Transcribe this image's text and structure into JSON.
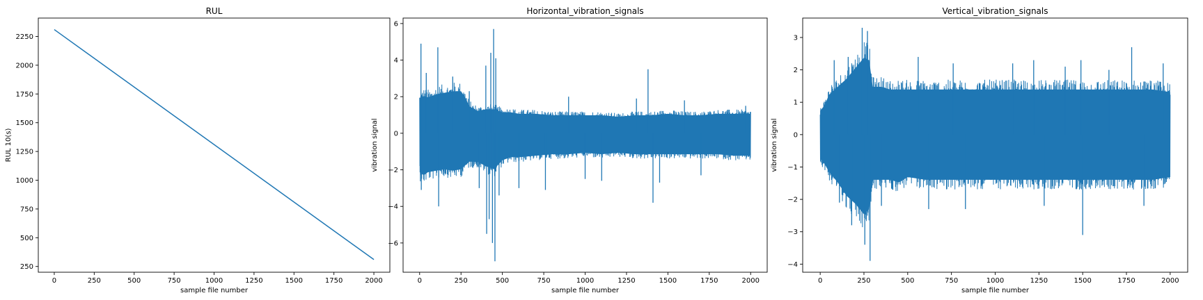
{
  "chart_data": [
    {
      "type": "line",
      "title": "RUL",
      "xlabel": "sample file number",
      "ylabel": "RUL 10(s)",
      "xlim": [
        -100,
        2100
      ],
      "ylim": [
        200,
        2410
      ],
      "xticks": [
        0,
        250,
        500,
        750,
        1000,
        1250,
        1500,
        1750,
        2000
      ],
      "yticks": [
        250,
        500,
        750,
        1000,
        1250,
        1500,
        1750,
        2000,
        2250
      ],
      "grid": false,
      "series": [
        {
          "color": "#1f77b4",
          "x": [
            0,
            2000
          ],
          "y": [
            2310,
            310
          ]
        }
      ]
    },
    {
      "type": "line",
      "title": "Horizontal_vibration_signals",
      "xlabel": "sample file number",
      "ylabel": "vibration signal",
      "xlim": [
        -100,
        2100
      ],
      "ylim": [
        -7.6,
        6.3
      ],
      "xticks": [
        0,
        250,
        500,
        750,
        1000,
        1250,
        1500,
        1750,
        2000
      ],
      "yticks": [
        -6,
        -4,
        -2,
        0,
        2,
        4,
        6
      ],
      "grid": false,
      "series": [
        {
          "color": "#1f77b4",
          "envelope_x": [
            0,
            25,
            50,
            100,
            150,
            200,
            250,
            280,
            300,
            350,
            400,
            450,
            500,
            550,
            600,
            700,
            800,
            900,
            1000,
            1100,
            1200,
            1300,
            1400,
            1500,
            1600,
            1700,
            1800,
            1900,
            2000
          ],
          "envelope_upper": [
            2.3,
            2.5,
            2.4,
            2.6,
            2.7,
            2.8,
            2.8,
            2.3,
            1.8,
            1.5,
            1.6,
            1.6,
            1.4,
            1.4,
            1.3,
            1.3,
            1.2,
            1.2,
            1.2,
            1.2,
            1.1,
            1.2,
            1.2,
            1.3,
            1.2,
            1.2,
            1.3,
            1.3,
            1.3
          ],
          "envelope_lower": [
            -2.6,
            -2.8,
            -2.6,
            -2.5,
            -2.4,
            -2.5,
            -2.4,
            -2.1,
            -1.9,
            -1.9,
            -2.2,
            -2.4,
            -1.8,
            -1.6,
            -1.6,
            -1.5,
            -1.4,
            -1.4,
            -1.3,
            -1.4,
            -1.3,
            -1.4,
            -1.4,
            -1.4,
            -1.4,
            -1.4,
            -1.4,
            -1.5,
            -1.5
          ],
          "spikes": [
            {
              "x": 8,
              "y": 4.9
            },
            {
              "x": 10,
              "y": -3.1
            },
            {
              "x": 40,
              "y": 3.3
            },
            {
              "x": 110,
              "y": 4.7
            },
            {
              "x": 115,
              "y": -4.0
            },
            {
              "x": 200,
              "y": 3.1
            },
            {
              "x": 300,
              "y": 2.3
            },
            {
              "x": 360,
              "y": -3.0
            },
            {
              "x": 400,
              "y": 3.7
            },
            {
              "x": 405,
              "y": -5.5
            },
            {
              "x": 420,
              "y": -4.7
            },
            {
              "x": 430,
              "y": 4.4
            },
            {
              "x": 440,
              "y": -6.0
            },
            {
              "x": 447,
              "y": 5.7
            },
            {
              "x": 455,
              "y": -7.0
            },
            {
              "x": 460,
              "y": 4.1
            },
            {
              "x": 480,
              "y": -3.4
            },
            {
              "x": 600,
              "y": -3.0
            },
            {
              "x": 760,
              "y": -3.1
            },
            {
              "x": 900,
              "y": 2.0
            },
            {
              "x": 1000,
              "y": -2.5
            },
            {
              "x": 1100,
              "y": -2.6
            },
            {
              "x": 1310,
              "y": 1.9
            },
            {
              "x": 1380,
              "y": 3.5
            },
            {
              "x": 1410,
              "y": -3.8
            },
            {
              "x": 1450,
              "y": -2.7
            },
            {
              "x": 1600,
              "y": 1.8
            },
            {
              "x": 1700,
              "y": -2.3
            },
            {
              "x": 1970,
              "y": 1.5
            }
          ]
        }
      ]
    },
    {
      "type": "line",
      "title": "Vertical_vibration_signals",
      "xlabel": "sample file number",
      "ylabel": "vibration signal",
      "xlim": [
        -100,
        2100
      ],
      "ylim": [
        -4.25,
        3.6
      ],
      "xticks": [
        0,
        250,
        500,
        750,
        1000,
        1250,
        1500,
        1750,
        2000
      ],
      "yticks": [
        -4,
        -3,
        -2,
        -1,
        0,
        1,
        2,
        3
      ],
      "grid": false,
      "series": [
        {
          "color": "#1f77b4",
          "envelope_x": [
            0,
            25,
            50,
            100,
            150,
            200,
            250,
            280,
            300,
            350,
            400,
            450,
            500,
            600,
            700,
            800,
            900,
            1000,
            1100,
            1200,
            1300,
            1400,
            1500,
            1600,
            1700,
            1800,
            1900,
            2000
          ],
          "envelope_upper": [
            0.9,
            1.1,
            1.5,
            1.8,
            2.1,
            2.5,
            2.9,
            2.8,
            1.8,
            1.8,
            1.7,
            1.7,
            1.7,
            1.7,
            1.7,
            1.7,
            1.7,
            1.7,
            1.7,
            1.7,
            1.7,
            1.7,
            1.7,
            1.7,
            1.7,
            1.7,
            1.7,
            1.6
          ],
          "envelope_lower": [
            -0.9,
            -1.1,
            -1.4,
            -1.8,
            -2.3,
            -2.6,
            -3.0,
            -2.8,
            -1.7,
            -1.7,
            -1.7,
            -1.8,
            -1.6,
            -1.7,
            -1.7,
            -1.7,
            -1.7,
            -1.7,
            -1.7,
            -1.7,
            -1.7,
            -1.7,
            -1.7,
            -1.7,
            -1.7,
            -1.7,
            -1.7,
            -1.6
          ],
          "spikes": [
            {
              "x": 80,
              "y": 2.3
            },
            {
              "x": 110,
              "y": -2.1
            },
            {
              "x": 160,
              "y": 2.4
            },
            {
              "x": 180,
              "y": -2.8
            },
            {
              "x": 240,
              "y": 3.3
            },
            {
              "x": 255,
              "y": -3.4
            },
            {
              "x": 270,
              "y": 3.2
            },
            {
              "x": 285,
              "y": -3.9
            },
            {
              "x": 350,
              "y": -2.2
            },
            {
              "x": 560,
              "y": 2.4
            },
            {
              "x": 620,
              "y": -2.3
            },
            {
              "x": 760,
              "y": 2.2
            },
            {
              "x": 830,
              "y": -2.3
            },
            {
              "x": 1100,
              "y": 2.2
            },
            {
              "x": 1220,
              "y": 2.3
            },
            {
              "x": 1280,
              "y": -2.2
            },
            {
              "x": 1400,
              "y": 2.1
            },
            {
              "x": 1490,
              "y": 2.3
            },
            {
              "x": 1500,
              "y": -3.1
            },
            {
              "x": 1650,
              "y": 2.0
            },
            {
              "x": 1780,
              "y": 2.7
            },
            {
              "x": 1850,
              "y": -2.2
            },
            {
              "x": 1960,
              "y": 2.2
            }
          ]
        }
      ]
    }
  ]
}
